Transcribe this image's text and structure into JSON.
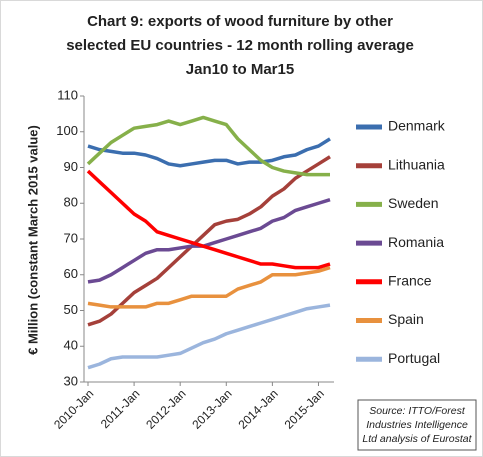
{
  "chart_data": {
    "type": "line",
    "title": [
      "Chart 9: exports of wood furniture by other",
      "selected EU countries - 12 month rolling average",
      "Jan10 to Mar15"
    ],
    "ylabel": "€ Million (constant March 2015 value)",
    "annotation": [
      "Source: ITTO/Forest",
      "Industries Intelligence",
      "Ltd analysis of Eurostat"
    ],
    "categories": [
      "2010-Jan",
      null,
      null,
      null,
      "2011-Jan",
      null,
      null,
      null,
      "2012-Jan",
      null,
      null,
      null,
      "2013-Jan",
      null,
      null,
      null,
      "2014-Jan",
      null,
      null,
      null,
      "2015-Jan",
      null
    ],
    "ylim": [
      30,
      110
    ],
    "yticks": [
      30,
      40,
      50,
      60,
      70,
      80,
      90,
      100,
      110
    ],
    "grid": false,
    "legend": "right",
    "series": [
      {
        "name": "Denmark",
        "color": "#3b6eaf",
        "values": [
          96,
          95,
          94.5,
          94,
          94,
          93.5,
          92.5,
          91,
          90.5,
          91,
          91.5,
          92,
          92,
          91,
          91.5,
          91.5,
          92,
          93,
          93.5,
          95,
          96,
          98
        ]
      },
      {
        "name": "Lithuania",
        "color": "#a5403a",
        "values": [
          46,
          47,
          49,
          52,
          55,
          57,
          59,
          62,
          65,
          68,
          71,
          74,
          75,
          75.5,
          77,
          79,
          82,
          84,
          87,
          89,
          91,
          93
        ]
      },
      {
        "name": "Sweden",
        "color": "#86b04a",
        "values": [
          91,
          94,
          97,
          99,
          101,
          101.5,
          102,
          103,
          102,
          103,
          104,
          103,
          102,
          98,
          95,
          92,
          90,
          89,
          88.5,
          88,
          88,
          88
        ]
      },
      {
        "name": "Romania",
        "color": "#6b4a93",
        "values": [
          58,
          58.5,
          60,
          62,
          64,
          66,
          67,
          67,
          67.5,
          68,
          68,
          69,
          70,
          71,
          72,
          73,
          75,
          76,
          78,
          79,
          80,
          81
        ]
      },
      {
        "name": "France",
        "color": "#ff0000",
        "values": [
          89,
          86,
          83,
          80,
          77,
          75,
          72,
          71,
          70,
          69,
          68,
          67,
          66,
          65,
          64,
          63,
          63,
          62.5,
          62,
          62,
          62,
          63
        ]
      },
      {
        "name": "Spain",
        "color": "#e8913e",
        "values": [
          52,
          51.5,
          51,
          51,
          51,
          51,
          52,
          52,
          53,
          54,
          54,
          54,
          54,
          56,
          57,
          58,
          60,
          60,
          60,
          60.5,
          61,
          62
        ]
      },
      {
        "name": "Portugal",
        "color": "#9bb5dd",
        "values": [
          34,
          35,
          36.5,
          37,
          37,
          37,
          37,
          37.5,
          38,
          39.5,
          41,
          42,
          43.5,
          44.5,
          45.5,
          46.5,
          47.5,
          48.5,
          49.5,
          50.5,
          51,
          51.5
        ]
      }
    ]
  }
}
